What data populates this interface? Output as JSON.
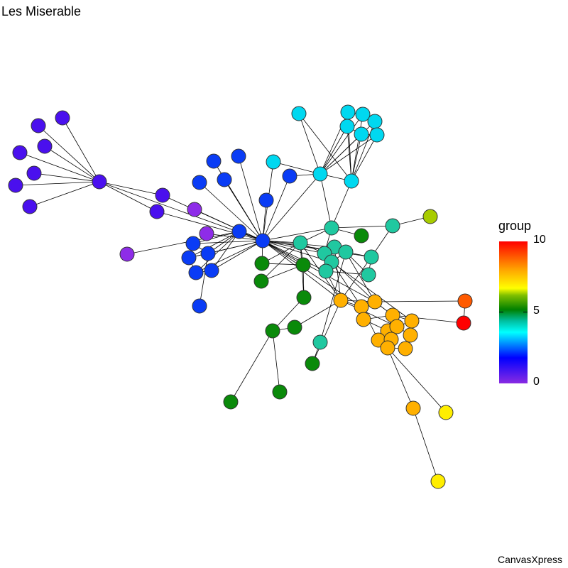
{
  "title": "Les Miserable",
  "footer": "CanvasXpress",
  "legend": {
    "title": "group",
    "max": "10",
    "mid": "5",
    "min": "0"
  },
  "group_colors": {
    "0": "#8e2ce8",
    "1": "#4a10ee",
    "2": "#0a3cf5",
    "3": "#00d8f0",
    "4": "#20c8a0",
    "5": "#0a8a0a",
    "6": "#a8cc00",
    "7": "#ffee00",
    "8": "#ffb000",
    "9": "#ff5a00",
    "10": "#ff0000"
  },
  "nodes_group": [
    1,
    1,
    1,
    1,
    1,
    1,
    1,
    1,
    1,
    1,
    0,
    0,
    0,
    2,
    2,
    2,
    2,
    2,
    2,
    2,
    2,
    2,
    2,
    2,
    2,
    2,
    2,
    3,
    3,
    3,
    3,
    3,
    3,
    3,
    3,
    3,
    3,
    4,
    4,
    4,
    4,
    4,
    4,
    4,
    4,
    4,
    4,
    4,
    5,
    5,
    5,
    5,
    5,
    5,
    5,
    5,
    5,
    5,
    6,
    8,
    8,
    8,
    8,
    8,
    8,
    8,
    8,
    8,
    8,
    8,
    8,
    8,
    8,
    7,
    7,
    9,
    10,
    10
  ],
  "edges": [
    [
      0,
      1
    ],
    [
      0,
      2
    ],
    [
      0,
      3
    ],
    [
      0,
      4
    ],
    [
      0,
      5
    ],
    [
      0,
      6
    ],
    [
      0,
      7
    ],
    [
      0,
      8
    ],
    [
      0,
      9
    ],
    [
      8,
      19
    ],
    [
      9,
      19
    ],
    [
      0,
      19
    ],
    [
      12,
      18
    ],
    [
      10,
      19
    ],
    [
      11,
      19
    ],
    [
      13,
      19
    ],
    [
      14,
      19
    ],
    [
      15,
      19
    ],
    [
      16,
      19
    ],
    [
      17,
      19
    ],
    [
      18,
      19
    ],
    [
      20,
      19
    ],
    [
      21,
      19
    ],
    [
      22,
      19
    ],
    [
      23,
      19
    ],
    [
      24,
      19
    ],
    [
      25,
      19
    ],
    [
      26,
      22
    ],
    [
      28,
      19
    ],
    [
      29,
      19
    ],
    [
      37,
      19
    ],
    [
      38,
      19
    ],
    [
      40,
      19
    ],
    [
      41,
      19
    ],
    [
      42,
      19
    ],
    [
      43,
      19
    ],
    [
      44,
      19
    ],
    [
      49,
      19
    ],
    [
      50,
      19
    ],
    [
      59,
      19
    ],
    [
      60,
      19
    ],
    [
      61,
      19
    ],
    [
      21,
      22
    ],
    [
      22,
      23
    ],
    [
      23,
      24
    ],
    [
      24,
      25
    ],
    [
      21,
      18
    ],
    [
      22,
      18
    ],
    [
      23,
      18
    ],
    [
      24,
      18
    ],
    [
      25,
      18
    ],
    [
      27,
      29
    ],
    [
      27,
      30
    ],
    [
      28,
      29
    ],
    [
      29,
      30
    ],
    [
      29,
      31
    ],
    [
      29,
      32
    ],
    [
      29,
      33
    ],
    [
      29,
      34
    ],
    [
      29,
      35
    ],
    [
      29,
      36
    ],
    [
      30,
      31
    ],
    [
      30,
      32
    ],
    [
      30,
      33
    ],
    [
      30,
      34
    ],
    [
      30,
      35
    ],
    [
      30,
      36
    ],
    [
      31,
      32
    ],
    [
      32,
      33
    ],
    [
      34,
      35
    ],
    [
      35,
      36
    ],
    [
      31,
      34
    ],
    [
      33,
      36
    ],
    [
      20,
      29
    ],
    [
      29,
      38
    ],
    [
      30,
      38
    ],
    [
      37,
      38
    ],
    [
      37,
      41
    ],
    [
      38,
      39
    ],
    [
      38,
      48
    ],
    [
      39,
      58
    ],
    [
      39,
      44
    ],
    [
      40,
      41
    ],
    [
      41,
      42
    ],
    [
      42,
      43
    ],
    [
      43,
      44
    ],
    [
      44,
      46
    ],
    [
      45,
      46
    ],
    [
      43,
      46
    ],
    [
      37,
      50
    ],
    [
      49,
      50
    ],
    [
      50,
      51
    ],
    [
      50,
      52
    ],
    [
      52,
      53
    ],
    [
      53,
      54
    ],
    [
      53,
      56
    ],
    [
      53,
      57
    ],
    [
      54,
      59
    ],
    [
      47,
      55
    ],
    [
      47,
      43
    ],
    [
      59,
      60
    ],
    [
      59,
      61
    ],
    [
      60,
      61
    ],
    [
      60,
      62
    ],
    [
      61,
      63
    ],
    [
      62,
      63
    ],
    [
      63,
      64
    ],
    [
      63,
      65
    ],
    [
      64,
      66
    ],
    [
      65,
      66
    ],
    [
      66,
      67
    ],
    [
      65,
      68
    ],
    [
      68,
      69
    ],
    [
      69,
      70
    ],
    [
      67,
      71
    ],
    [
      70,
      71
    ],
    [
      62,
      65
    ],
    [
      59,
      66
    ],
    [
      60,
      68
    ],
    [
      61,
      75
    ],
    [
      75,
      76
    ],
    [
      63,
      76
    ],
    [
      70,
      72
    ],
    [
      72,
      73
    ],
    [
      70,
      74
    ],
    [
      55,
      59
    ],
    [
      51,
      37
    ],
    [
      38,
      41
    ],
    [
      40,
      59
    ],
    [
      42,
      60
    ],
    [
      45,
      59
    ],
    [
      49,
      37
    ],
    [
      19,
      45
    ],
    [
      44,
      59
    ],
    [
      43,
      61
    ],
    [
      52,
      37
    ],
    [
      37,
      59
    ],
    [
      41,
      61
    ],
    [
      42,
      64
    ]
  ]
}
